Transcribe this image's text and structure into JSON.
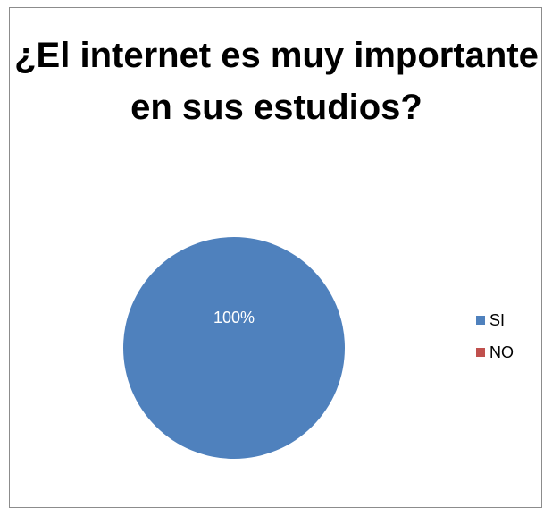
{
  "chart_data": {
    "type": "pie",
    "title": "¿El internet es muy importante en sus estudios?",
    "categories": [
      "SI",
      "NO"
    ],
    "values": [
      100,
      0
    ],
    "data_labels": [
      "100%",
      ""
    ],
    "colors": [
      "#4f81bd",
      "#c0504d"
    ],
    "legend_position": "right"
  },
  "colors": {
    "label_text": "#ffffff"
  }
}
